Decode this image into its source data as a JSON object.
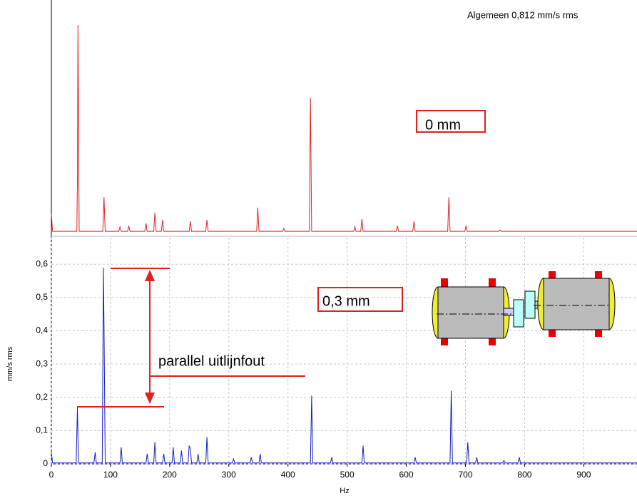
{
  "chart_data": [
    {
      "type": "line",
      "annotations": [
        "Algemeen 0,812 mm/s rms",
        "0 mm"
      ],
      "xlim": [
        0,
        990
      ],
      "ylim": [
        0,
        0.68
      ],
      "series": [
        {
          "color": "#e02020",
          "x": [
            0,
            2,
            43,
            44,
            45,
            47,
            87,
            89,
            91,
            114,
            116,
            118,
            129,
            131,
            133,
            158,
            160,
            162,
            173,
            175,
            177,
            186,
            188,
            190,
            233,
            235,
            237,
            261,
            263,
            265,
            347,
            349,
            351,
            391,
            393,
            395,
            436,
            438,
            440,
            511,
            513,
            515,
            523,
            525,
            527,
            583,
            585,
            587,
            611,
            613,
            615,
            670,
            672,
            674,
            699,
            701,
            703,
            756,
            758,
            760,
            990
          ],
          "values": [
            0.054,
            0.004,
            0.004,
            0.14,
            0.607,
            0.004,
            0.004,
            0.104,
            0.004,
            0.004,
            0.017,
            0.004,
            0.004,
            0.02,
            0.004,
            0.004,
            0.027,
            0.004,
            0.004,
            0.058,
            0.004,
            0.004,
            0.037,
            0.004,
            0.004,
            0.033,
            0.004,
            0.004,
            0.037,
            0.004,
            0.004,
            0.073,
            0.004,
            0.004,
            0.0125,
            0.004,
            0.004,
            0.394,
            0.004,
            0.004,
            0.017,
            0.004,
            0.004,
            0.04,
            0.004,
            0.004,
            0.02,
            0.004,
            0.004,
            0.033,
            0.004,
            0.004,
            0.104,
            0.004,
            0.004,
            0.02,
            0.004,
            0.004,
            0.008,
            0.004,
            0.004
          ]
        }
      ]
    },
    {
      "type": "line",
      "annotations": [
        "0,3 mm",
        "parallel uitlijnfout"
      ],
      "x_label": "Hz",
      "y_label": "mm/s rms",
      "xlim": [
        0,
        990
      ],
      "ylim": [
        0,
        0.68
      ],
      "xticks": [
        0,
        100,
        200,
        300,
        400,
        500,
        600,
        700,
        800,
        900
      ],
      "yticks": [
        0,
        {
          "value": 0.1,
          "label": "0,1"
        },
        {
          "value": 0.2,
          "label": "0,2"
        },
        {
          "value": 0.3,
          "label": "0,3"
        },
        {
          "value": 0.4,
          "label": "0,4"
        },
        {
          "value": 0.5,
          "label": "0,5"
        },
        {
          "value": 0.6,
          "label": "0,6"
        }
      ],
      "grid": true,
      "series": [
        {
          "color": "#1020c0",
          "x": [
            0,
            2,
            42,
            44,
            46,
            72,
            74,
            76,
            86,
            88,
            89,
            91,
            116,
            118,
            120,
            160,
            162,
            164,
            173,
            175,
            177,
            188,
            190,
            192,
            204,
            206,
            208,
            218,
            220,
            222,
            231,
            233,
            235,
            237,
            246,
            248,
            250,
            261,
            263,
            265,
            306,
            308,
            310,
            336,
            338,
            340,
            351,
            353,
            355,
            438,
            440,
            442,
            472,
            474,
            476,
            525,
            527,
            529,
            613,
            615,
            617,
            674,
            676,
            678,
            702,
            704,
            706,
            717,
            719,
            721,
            763,
            765,
            767,
            789,
            791,
            793,
            990
          ],
          "values": [
            0.035,
            0.003,
            0.003,
            0.17,
            0.003,
            0.003,
            0.035,
            0.003,
            0.003,
            0.59,
            0.42,
            0.003,
            0.003,
            0.05,
            0.003,
            0.003,
            0.03,
            0.003,
            0.003,
            0.065,
            0.003,
            0.003,
            0.03,
            0.003,
            0.003,
            0.05,
            0.003,
            0.003,
            0.04,
            0.003,
            0.003,
            0.055,
            0.045,
            0.003,
            0.003,
            0.03,
            0.003,
            0.003,
            0.08,
            0.003,
            0.003,
            0.015,
            0.003,
            0.003,
            0.02,
            0.003,
            0.003,
            0.03,
            0.003,
            0.003,
            0.205,
            0.003,
            0.003,
            0.02,
            0.003,
            0.003,
            0.055,
            0.003,
            0.003,
            0.02,
            0.003,
            0.003,
            0.22,
            0.003,
            0.003,
            0.065,
            0.003,
            0.003,
            0.02,
            0.003,
            0.003,
            0.01,
            0.003,
            0.003,
            0.02,
            0.003,
            0.003
          ]
        }
      ]
    }
  ]
}
